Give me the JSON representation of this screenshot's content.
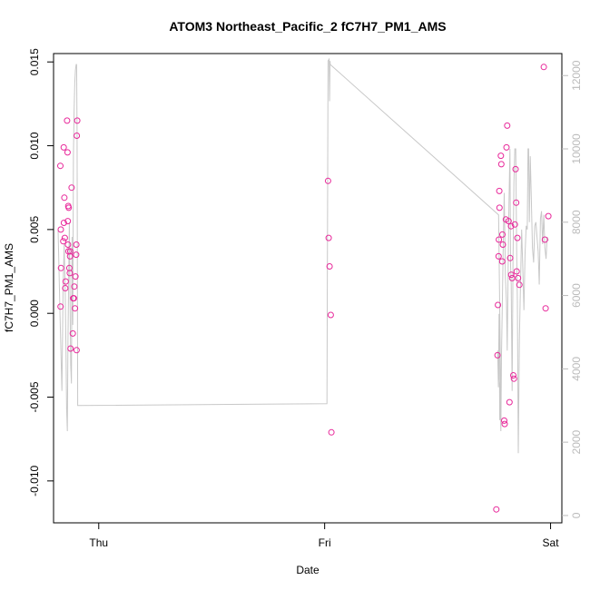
{
  "chart_data": {
    "type": "scatter",
    "title": "ATOM3 Northeast_Pacific_2 fC7H7_PM1_AMS",
    "xlabel": "Date",
    "ylabel": "fC7H7_PM1_AMS",
    "x_unit": "days from Thu 00:00",
    "xlim": [
      -0.2,
      2.05
    ],
    "x_ticks": [
      {
        "value": 0,
        "label": "Thu"
      },
      {
        "value": 1,
        "label": "Fri"
      },
      {
        "value": 2,
        "label": "Sat"
      }
    ],
    "ylim": [
      -0.0125,
      0.0155
    ],
    "y_ticks": [
      -0.01,
      -0.005,
      0.0,
      0.005,
      0.01,
      0.015
    ],
    "y_tick_labels": [
      "-0.010",
      "-0.005",
      "0.000",
      "0.005",
      "0.010",
      "0.015"
    ],
    "y2lim": [
      -200,
      12600
    ],
    "y2_ticks": [
      0,
      2000,
      4000,
      6000,
      8000,
      10000,
      12000
    ],
    "y2_tick_labels": [
      "0",
      "2000",
      "4000",
      "6000",
      "8000",
      "10000",
      "12000"
    ],
    "grid": false,
    "colors": {
      "points": "#e8289a",
      "line": "#c8c8c8",
      "axis": "#000000",
      "right_axis": "#bbbbbb"
    },
    "series": [
      {
        "type": "scatter",
        "axis": "left",
        "points": [
          [
            -0.17,
            0.0088
          ],
          [
            -0.168,
            0.005
          ],
          [
            -0.167,
            0.0027
          ],
          [
            -0.169,
            0.0004
          ],
          [
            -0.155,
            0.0099
          ],
          [
            -0.152,
            0.0069
          ],
          [
            -0.154,
            0.0054
          ],
          [
            -0.157,
            0.0043
          ],
          [
            -0.15,
            0.0045
          ],
          [
            -0.148,
            0.0015
          ],
          [
            -0.146,
            0.0019
          ],
          [
            -0.14,
            0.0115
          ],
          [
            -0.138,
            0.0096
          ],
          [
            -0.137,
            0.0055
          ],
          [
            -0.135,
            0.0064
          ],
          [
            -0.133,
            0.0063
          ],
          [
            -0.136,
            0.0041
          ],
          [
            -0.134,
            0.0037
          ],
          [
            -0.13,
            0.0027
          ],
          [
            -0.128,
            0.0024
          ],
          [
            -0.127,
            0.0034
          ],
          [
            -0.126,
            0.0037
          ],
          [
            -0.125,
            -0.0021
          ],
          [
            -0.12,
            0.0075
          ],
          [
            -0.115,
            -0.0012
          ],
          [
            -0.113,
            0.0009
          ],
          [
            -0.11,
            0.0009
          ],
          [
            -0.108,
            0.0016
          ],
          [
            -0.105,
            0.0003
          ],
          [
            -0.103,
            0.0022
          ],
          [
            -0.1,
            0.0035
          ],
          [
            -0.099,
            0.0041
          ],
          [
            -0.098,
            -0.0022
          ],
          [
            -0.097,
            0.0106
          ],
          [
            -0.095,
            0.0115
          ],
          [
            1.015,
            0.0079
          ],
          [
            1.018,
            0.0045
          ],
          [
            1.022,
            0.0028
          ],
          [
            1.027,
            -0.0001
          ],
          [
            1.03,
            -0.0071
          ],
          [
            1.76,
            -0.0117
          ],
          [
            1.765,
            -0.0025
          ],
          [
            1.767,
            0.0005
          ],
          [
            1.77,
            0.0034
          ],
          [
            1.771,
            0.0044
          ],
          [
            1.774,
            0.0063
          ],
          [
            1.773,
            0.0073
          ],
          [
            1.78,
            0.0094
          ],
          [
            1.782,
            0.0089
          ],
          [
            1.787,
            0.0047
          ],
          [
            1.786,
            0.0031
          ],
          [
            1.789,
            0.0041
          ],
          [
            1.795,
            -0.0064
          ],
          [
            1.797,
            -0.0066
          ],
          [
            1.802,
            0.0056
          ],
          [
            1.805,
            0.0099
          ],
          [
            1.808,
            0.0112
          ],
          [
            1.814,
            0.0055
          ],
          [
            1.818,
            -0.0053
          ],
          [
            1.821,
            0.0033
          ],
          [
            1.825,
            0.0052
          ],
          [
            1.826,
            0.0023
          ],
          [
            1.83,
            0.0021
          ],
          [
            1.835,
            -0.0037
          ],
          [
            1.838,
            -0.0039
          ],
          [
            1.842,
            0.0053
          ],
          [
            1.845,
            0.0086
          ],
          [
            1.848,
            0.0066
          ],
          [
            1.85,
            0.0025
          ],
          [
            1.853,
            0.0045
          ],
          [
            1.856,
            0.0021
          ],
          [
            1.862,
            0.0017
          ],
          [
            1.97,
            0.0147
          ],
          [
            1.975,
            0.0044
          ],
          [
            1.978,
            0.0003
          ],
          [
            1.99,
            0.0058
          ]
        ]
      },
      {
        "type": "line",
        "axis": "right",
        "points": [
          [
            -0.18,
            7800
          ],
          [
            -0.172,
            5600
          ],
          [
            -0.163,
            3400
          ],
          [
            -0.158,
            6200
          ],
          [
            -0.153,
            7400
          ],
          [
            -0.148,
            6000
          ],
          [
            -0.145,
            4500
          ],
          [
            -0.142,
            2900
          ],
          [
            -0.139,
            2300
          ],
          [
            -0.136,
            4800
          ],
          [
            -0.133,
            6600
          ],
          [
            -0.13,
            8000
          ],
          [
            -0.127,
            5800
          ],
          [
            -0.124,
            4100
          ],
          [
            -0.121,
            3600
          ],
          [
            -0.118,
            7600
          ],
          [
            -0.115,
            5200
          ],
          [
            -0.112,
            9800
          ],
          [
            -0.109,
            11000
          ],
          [
            -0.106,
            11800
          ],
          [
            -0.103,
            12150
          ],
          [
            -0.1,
            12300
          ],
          [
            -0.098,
            12300
          ],
          [
            -0.096,
            10500
          ],
          [
            -0.093,
            3000
          ],
          [
            1.01,
            3050
          ],
          [
            1.015,
            12400
          ],
          [
            1.02,
            12450
          ],
          [
            1.022,
            11300
          ],
          [
            1.024,
            12400
          ],
          [
            1.025,
            12300
          ],
          [
            1.77,
            8200
          ],
          [
            1.78,
            3050
          ],
          [
            1.766,
            4500
          ],
          [
            1.769,
            3500
          ],
          [
            1.772,
            5500
          ],
          [
            1.775,
            2600
          ],
          [
            1.777,
            3400
          ],
          [
            1.78,
            2300
          ],
          [
            1.783,
            4400
          ],
          [
            1.786,
            5600
          ],
          [
            1.79,
            7200
          ],
          [
            1.795,
            8800
          ],
          [
            1.8,
            6500
          ],
          [
            1.805,
            5800
          ],
          [
            1.808,
            4500
          ],
          [
            1.812,
            6700
          ],
          [
            1.816,
            8600
          ],
          [
            1.82,
            10000
          ],
          [
            1.823,
            6800
          ],
          [
            1.826,
            6300
          ],
          [
            1.83,
            3400
          ],
          [
            1.834,
            7000
          ],
          [
            1.838,
            9100
          ],
          [
            1.842,
            10000
          ],
          [
            1.846,
            10000
          ],
          [
            1.85,
            7200
          ],
          [
            1.853,
            5800
          ],
          [
            1.857,
            1700
          ],
          [
            1.862,
            4800
          ],
          [
            1.867,
            6400
          ],
          [
            1.872,
            7800
          ],
          [
            1.877,
            6800
          ],
          [
            1.882,
            5600
          ],
          [
            1.887,
            7100
          ],
          [
            1.892,
            7900
          ],
          [
            1.897,
            7800
          ],
          [
            1.9,
            10000
          ],
          [
            1.903,
            10000
          ],
          [
            1.906,
            8000
          ],
          [
            1.91,
            9800
          ],
          [
            1.915,
            8600
          ],
          [
            1.92,
            7300
          ],
          [
            1.925,
            6900
          ],
          [
            1.93,
            7900
          ],
          [
            1.935,
            8000
          ],
          [
            1.94,
            7600
          ],
          [
            1.945,
            7200
          ],
          [
            1.95,
            6300
          ],
          [
            1.955,
            8100
          ],
          [
            1.96,
            8300
          ],
          [
            1.965,
            7400
          ],
          [
            1.97,
            8200
          ],
          [
            1.975,
            7300
          ],
          [
            1.98,
            7000
          ],
          [
            1.985,
            7600
          ],
          [
            1.99,
            7500
          ]
        ]
      }
    ]
  }
}
